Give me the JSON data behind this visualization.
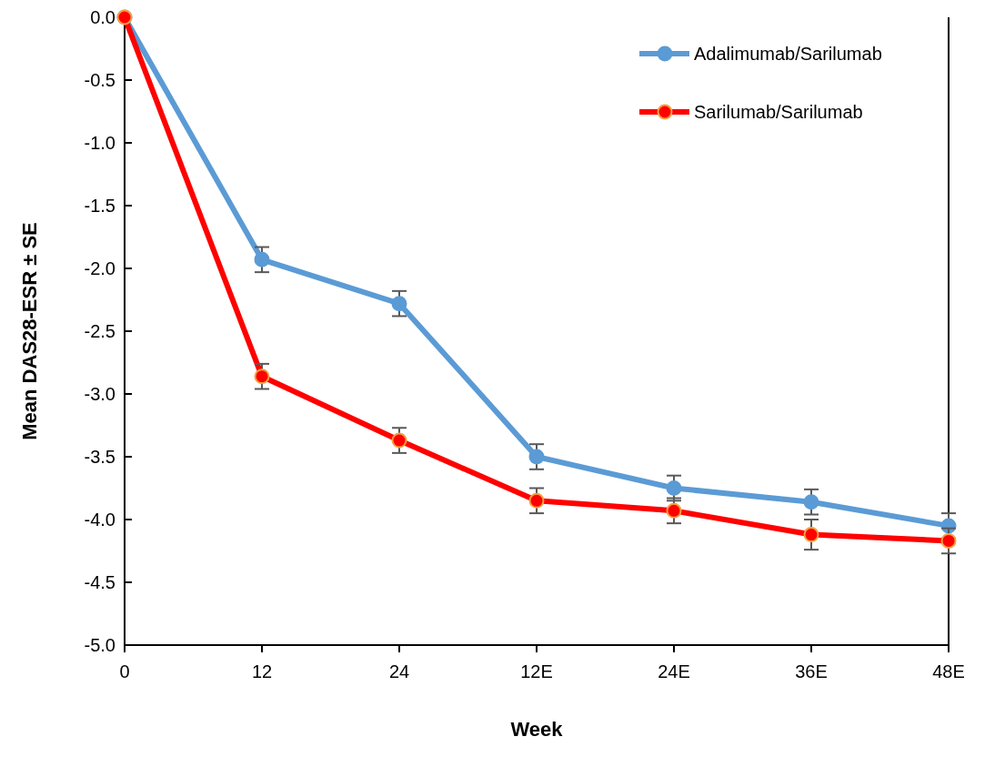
{
  "chart_data": {
    "type": "line",
    "xlabel": "Week",
    "ylabel": "Mean DAS28-ESR ± SE",
    "categories": [
      "0",
      "12",
      "24",
      "12E",
      "24E",
      "36E",
      "48E"
    ],
    "series": [
      {
        "name": "Adalimumab/Sarilumab",
        "color": "#5b9bd5",
        "values": [
          0,
          -1.93,
          -2.28,
          -3.5,
          -3.75,
          -3.86,
          -4.05
        ],
        "errors": [
          null,
          0.1,
          0.1,
          0.1,
          0.1,
          0.1,
          0.1
        ]
      },
      {
        "name": "Sarilumab/Sarilumab",
        "color": "#ff0000",
        "values": [
          0,
          -2.86,
          -3.37,
          -3.85,
          -3.93,
          -4.12,
          -4.17
        ],
        "errors": [
          null,
          0.1,
          0.1,
          0.1,
          0.1,
          0.12,
          0.1
        ]
      }
    ],
    "ylim": [
      -5,
      0
    ],
    "yticks": [
      {
        "value": -5,
        "label": "-5.0"
      },
      {
        "value": -4.5,
        "label": "-4.5"
      },
      {
        "value": -4,
        "label": "-4.0"
      },
      {
        "value": -3.5,
        "label": "-3.5"
      },
      {
        "value": -3,
        "label": "-3.0"
      },
      {
        "value": -2.5,
        "label": "-2.5"
      },
      {
        "value": -2,
        "label": "-2.0"
      },
      {
        "value": -1.5,
        "label": "-1.5"
      },
      {
        "value": -1,
        "label": "-1.0"
      },
      {
        "value": -0.5,
        "label": "-0.5"
      },
      {
        "value": 0,
        "label": "0.0"
      }
    ],
    "legend": "top right",
    "marker": "circle",
    "line_style": "solid",
    "grid": false
  }
}
